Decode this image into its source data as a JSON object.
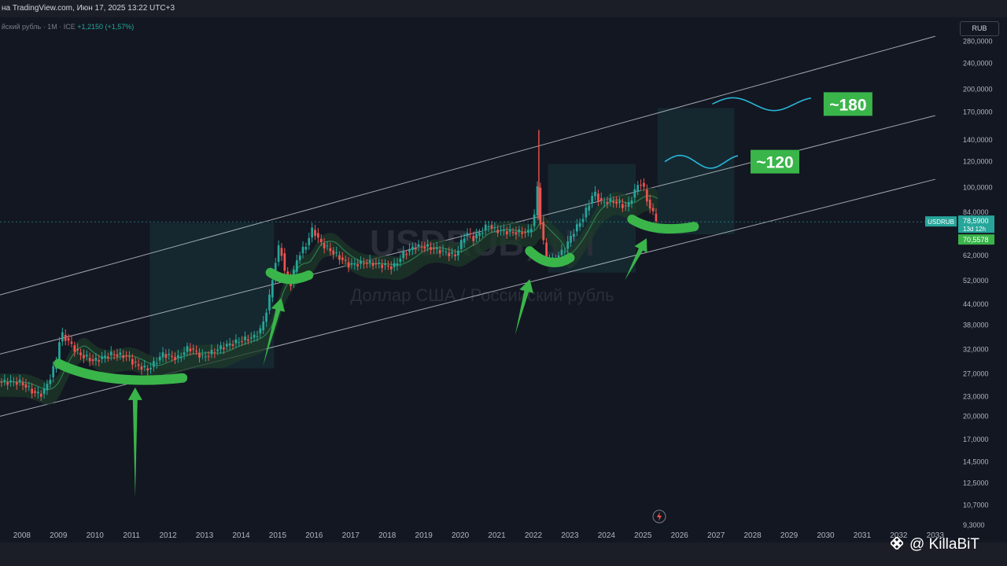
{
  "header": {
    "source_text": "на TradingView.com, Июн 17, 2025 13:22 UTC+3",
    "symbol_text": "йский рубль · 1M · ICE",
    "change_text": "+1,2150 (+1,57%)"
  },
  "currency_badge": "RUB",
  "price_tags": {
    "symbol": "USDRUB",
    "last": "78,5900",
    "countdown": "13d 12h",
    "ma": "70,5578"
  },
  "watermark": {
    "ticker": "USDRUB, 1M",
    "name": "Доллар США / Российский рубль"
  },
  "credit": "@ KillaBiT",
  "colors": {
    "background": "#131722",
    "up_candle": "#26a69a",
    "down_candle": "#ef5350",
    "annotation_green": "#3ab54a",
    "projection_cyan": "#29b6d8",
    "channel_line": "#d1d4dc",
    "band_fill": "#1e3a2a"
  },
  "chart_data": {
    "type": "candlestick",
    "title": "",
    "xlabel": "",
    "ylabel": "",
    "y_scale": "log",
    "ylim": [
      9.3,
      300
    ],
    "xlim": [
      2007.4,
      2033.5
    ],
    "x_ticks": [
      "2008",
      "2009",
      "2010",
      "2011",
      "2012",
      "2013",
      "2014",
      "2015",
      "2016",
      "2017",
      "2018",
      "2019",
      "2020",
      "2021",
      "2022",
      "2023",
      "2024",
      "2025",
      "2026",
      "2027",
      "2028",
      "2029",
      "2030",
      "2031",
      "2032",
      "2033"
    ],
    "y_ticks": [
      "280,0000",
      "240,0000",
      "200,0000",
      "170,0000",
      "140,0000",
      "120,0000",
      "100,0000",
      "84,0000",
      "78,5900",
      "62,0000",
      "52,0000",
      "44,0000",
      "38,0000",
      "32,0000",
      "27,0000",
      "23,0000",
      "20,0000",
      "17,0000",
      "14,5000",
      "12,5000",
      "10,7000",
      "9,3000"
    ],
    "price_series": {
      "name": "USDRUB",
      "points": [
        [
          2007.4,
          25.5
        ],
        [
          2008.0,
          25.4
        ],
        [
          2008.4,
          23.5
        ],
        [
          2008.6,
          23.4
        ],
        [
          2008.8,
          26
        ],
        [
          2009.0,
          30
        ],
        [
          2009.1,
          36
        ],
        [
          2009.3,
          34
        ],
        [
          2009.6,
          31
        ],
        [
          2010.0,
          29.5
        ],
        [
          2010.5,
          31
        ],
        [
          2010.9,
          30.5
        ],
        [
          2011.2,
          28.5
        ],
        [
          2011.5,
          27.8
        ],
        [
          2011.9,
          31
        ],
        [
          2012.3,
          30
        ],
        [
          2012.6,
          32.5
        ],
        [
          2013.0,
          30.3
        ],
        [
          2013.5,
          32.5
        ],
        [
          2014.0,
          34
        ],
        [
          2014.4,
          35
        ],
        [
          2014.6,
          37
        ],
        [
          2014.8,
          45
        ],
        [
          2014.95,
          57
        ],
        [
          2015.1,
          68
        ],
        [
          2015.25,
          54
        ],
        [
          2015.4,
          51
        ],
        [
          2015.6,
          62
        ],
        [
          2015.8,
          66
        ],
        [
          2016.0,
          75
        ],
        [
          2016.2,
          68
        ],
        [
          2016.5,
          64
        ],
        [
          2017.0,
          58
        ],
        [
          2017.5,
          59
        ],
        [
          2017.9,
          58
        ],
        [
          2018.2,
          57
        ],
        [
          2018.5,
          63
        ],
        [
          2018.8,
          66
        ],
        [
          2019.1,
          66
        ],
        [
          2019.5,
          64
        ],
        [
          2019.9,
          62
        ],
        [
          2020.2,
          73
        ],
        [
          2020.4,
          70
        ],
        [
          2020.6,
          73
        ],
        [
          2020.8,
          77
        ],
        [
          2021.0,
          74
        ],
        [
          2021.5,
          73
        ],
        [
          2021.9,
          73
        ],
        [
          2022.05,
          79
        ],
        [
          2022.15,
          100
        ],
        [
          2022.25,
          75
        ],
        [
          2022.4,
          60
        ],
        [
          2022.6,
          60
        ],
        [
          2022.9,
          65
        ],
        [
          2023.1,
          72
        ],
        [
          2023.4,
          81
        ],
        [
          2023.7,
          97
        ],
        [
          2023.9,
          90
        ],
        [
          2024.2,
          91
        ],
        [
          2024.6,
          87
        ],
        [
          2024.85,
          99
        ],
        [
          2024.95,
          105
        ],
        [
          2025.05,
          100
        ],
        [
          2025.2,
          88
        ],
        [
          2025.35,
          82
        ],
        [
          2025.46,
          78.59
        ]
      ],
      "peak_spike": [
        2022.15,
        150
      ]
    },
    "channel": {
      "upper": [
        [
          2007.4,
          47
        ],
        [
          2033.0,
          290
        ]
      ],
      "middle": [
        [
          2007.4,
          31
        ],
        [
          2033.0,
          166
        ]
      ],
      "lower": [
        [
          2007.4,
          20
        ],
        [
          2033.0,
          106
        ]
      ]
    },
    "consolidation_boxes": [
      {
        "x": [
          2011.5,
          2014.9
        ],
        "y": [
          28,
          78
        ]
      },
      {
        "x": [
          2022.4,
          2024.8
        ],
        "y": [
          55,
          118
        ]
      },
      {
        "x": [
          2025.4,
          2027.5
        ],
        "y": [
          72,
          175
        ]
      }
    ],
    "projections": [
      {
        "label": "~120",
        "value": 120,
        "x": [
          2025.6,
          2027.6
        ]
      },
      {
        "label": "~180",
        "value": 180,
        "x": [
          2026.9,
          2029.6
        ]
      }
    ],
    "last_price": 78.59
  }
}
